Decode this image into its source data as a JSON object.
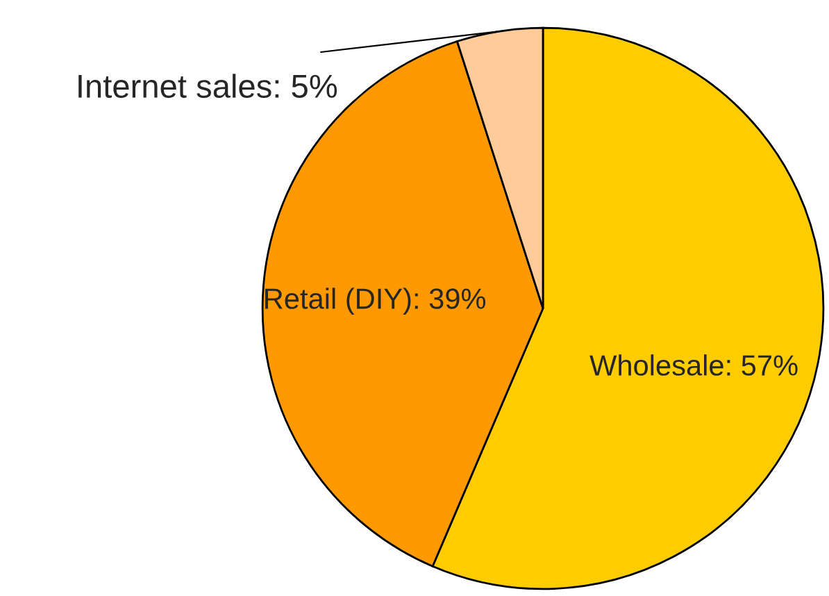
{
  "chart_data": {
    "type": "pie",
    "categories": [
      "Wholesale",
      "Retail (DIY)",
      "Internet sales"
    ],
    "values": [
      57,
      39,
      5
    ],
    "value_labels": [
      "57%",
      "39%",
      "5%"
    ],
    "colors": [
      "#ffcc00",
      "#ff9900",
      "#ffcc99"
    ],
    "legend": false
  }
}
